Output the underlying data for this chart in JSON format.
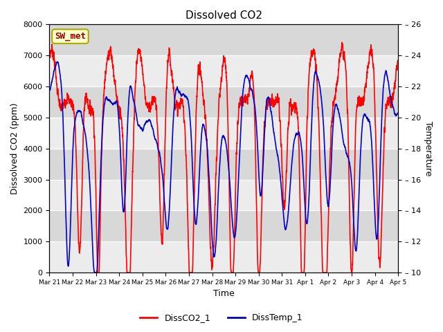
{
  "title": "Dissolved CO2",
  "xlabel": "Time",
  "ylabel_left": "Dissolved CO2 (ppm)",
  "ylabel_right": "Temperature",
  "ylim_left": [
    0,
    8000
  ],
  "ylim_right": [
    10,
    26
  ],
  "yticks_left": [
    0,
    1000,
    2000,
    3000,
    4000,
    5000,
    6000,
    7000,
    8000
  ],
  "yticks_right": [
    10,
    12,
    14,
    16,
    18,
    20,
    22,
    24,
    26
  ],
  "color_co2": "#ff0000",
  "color_temp": "#0000cc",
  "linewidth": 1.2,
  "legend_labels": [
    "DissCO2_1",
    "DissTemp_1"
  ],
  "station_label": "SW_met",
  "station_box_facecolor": "#ffffcc",
  "station_box_edgecolor": "#aaaa00",
  "bg_color_dark": "#d8d8d8",
  "bg_color_light": "#ececec",
  "fig_bg": "#ffffff",
  "xtick_labels": [
    "Mar 21",
    "Mar 22",
    "Mar 23",
    "Mar 24",
    "Mar 25",
    "Mar 26",
    "Mar 27",
    "Mar 28",
    "Mar 29",
    "Mar 30",
    "Mar 31",
    "Apr 1",
    "Apr 2",
    "Apr 3",
    "Apr 4",
    "Apr 5"
  ]
}
